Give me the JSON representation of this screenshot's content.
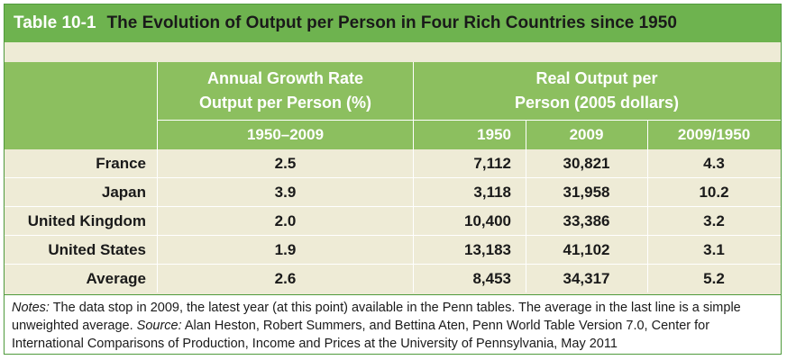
{
  "title": {
    "number": "Table 10-1",
    "text": "The Evolution of Output per Person in Four Rich Countries since 1950"
  },
  "header": {
    "group1_line1": "Annual Growth Rate",
    "group1_line2": "Output per Person (%)",
    "group2_line1": "Real Output per",
    "group2_line2": "Person (2005 dollars)",
    "sub_period": "1950–2009",
    "sub_1950": "1950",
    "sub_2009": "2009",
    "sub_ratio": "2009/1950"
  },
  "rows": [
    {
      "country": "France",
      "growth": "2.5",
      "y1950": "7,112",
      "y2009": "30,821",
      "ratio": "4.3"
    },
    {
      "country": "Japan",
      "growth": "3.9",
      "y1950": "3,118",
      "y2009": "31,958",
      "ratio": "10.2"
    },
    {
      "country": "United Kingdom",
      "growth": "2.0",
      "y1950": "10,400",
      "y2009": "33,386",
      "ratio": "3.2"
    },
    {
      "country": "United States",
      "growth": "1.9",
      "y1950": "13,183",
      "y2009": "41,102",
      "ratio": "3.1"
    },
    {
      "country": "Average",
      "growth": "2.6",
      "y1950": "8,453",
      "y2009": "34,317",
      "ratio": "5.2"
    }
  ],
  "notes": {
    "notes_label": "Notes:",
    "notes_text": " The data stop in 2009, the latest year (at this point) available in the Penn tables. The average in the last line is a simple unweighted average. ",
    "source_label": "Source:",
    "source_text": " Alan Heston, Robert Summers, and Bettina Aten, Penn World Table Version 7.0, Center for International Comparisons of Production, Income and Prices at the University of Pennsylvania, May 2011"
  },
  "colors": {
    "title_bar": "#6eb34f",
    "header": "#8cbf5f",
    "body": "#eeebd6",
    "border": "#4f9a3c"
  }
}
